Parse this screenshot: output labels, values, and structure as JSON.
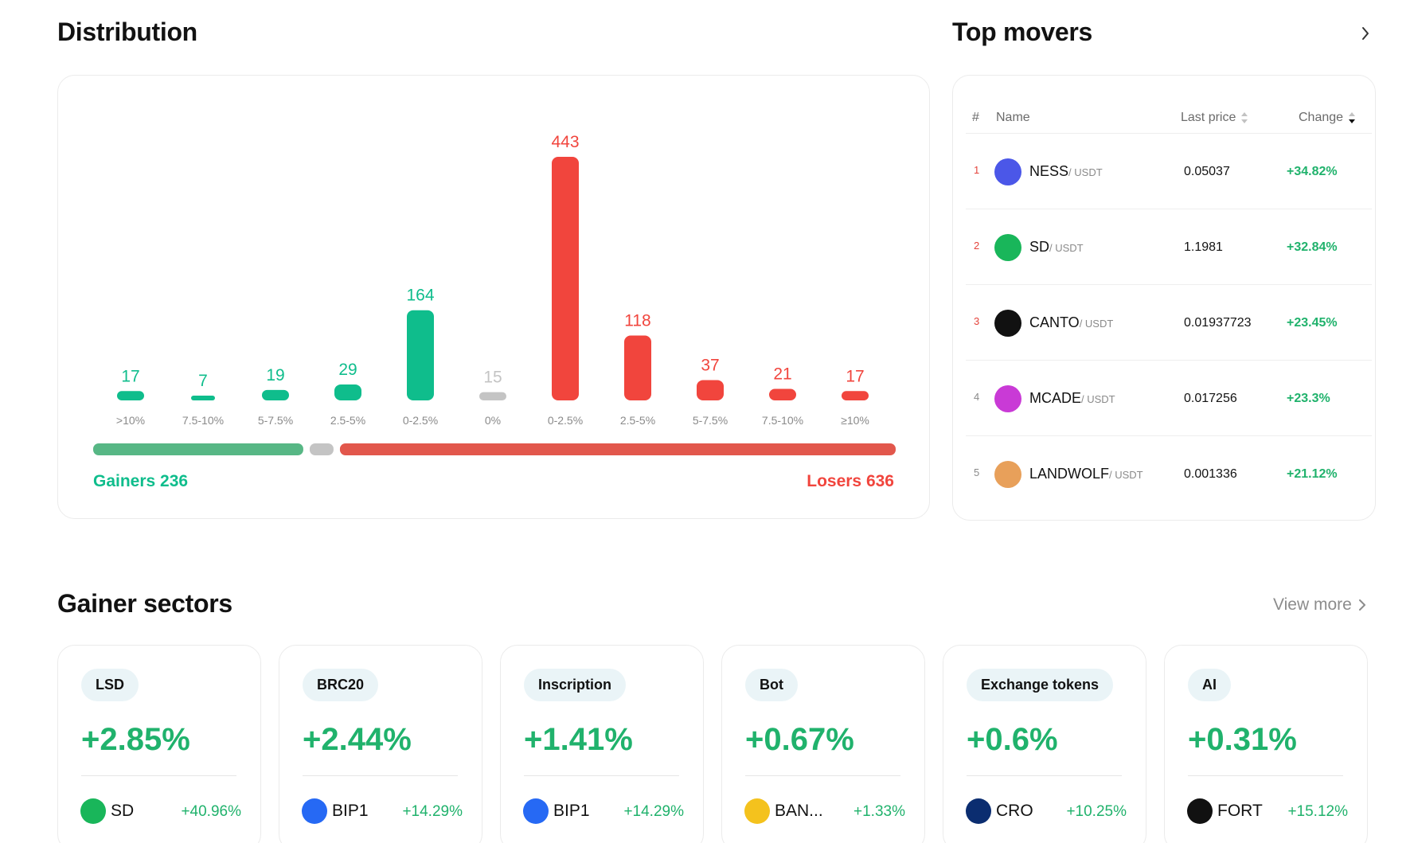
{
  "distribution": {
    "title": "Distribution",
    "gainers_label": "Gainers 236",
    "losers_label": "Losers 636",
    "gainers_count": 236,
    "neutral_count": 15,
    "losers_count": 636,
    "colors": {
      "gain": "#0fbd8c",
      "loss": "#f1453d",
      "neutral": "#c4c4c4",
      "gain_bar": "#57b785",
      "loss_bar": "#e2574c"
    }
  },
  "chart_data": {
    "type": "bar",
    "title": "Distribution",
    "categories": [
      ">10%",
      "7.5-10%",
      "5-7.5%",
      "2.5-5%",
      "0-2.5%",
      "0%",
      "0-2.5%",
      "2.5-5%",
      "5-7.5%",
      "7.5-10%",
      "≥10%"
    ],
    "values": [
      17,
      7,
      19,
      29,
      164,
      15,
      443,
      118,
      37,
      21,
      17
    ],
    "groups": [
      "gain",
      "gain",
      "gain",
      "gain",
      "gain",
      "neutral",
      "loss",
      "loss",
      "loss",
      "loss",
      "loss"
    ],
    "xlabel": "",
    "ylabel": "",
    "ylim": [
      0,
      443
    ],
    "grid": false
  },
  "top_movers": {
    "title": "Top movers",
    "columns": {
      "rank": "#",
      "name": "Name",
      "last_price": "Last price",
      "change": "Change"
    },
    "rows": [
      {
        "rank": "1",
        "base": "NESS",
        "quote": "/ USDT",
        "price": "0.05037",
        "change": "+34.82%",
        "logo_color": "#4b57e8"
      },
      {
        "rank": "2",
        "base": "SD",
        "quote": "/ USDT",
        "price": "1.1981",
        "change": "+32.84%",
        "logo_color": "#19b65a"
      },
      {
        "rank": "3",
        "base": "CANTO",
        "quote": "/ USDT",
        "price": "0.01937723",
        "change": "+23.45%",
        "logo_color": "#111111"
      },
      {
        "rank": "4",
        "base": "MCADE",
        "quote": "/ USDT",
        "price": "0.017256",
        "change": "+23.3%",
        "logo_color": "#c93ad6"
      },
      {
        "rank": "5",
        "base": "LANDWOLF",
        "quote": "/ USDT",
        "price": "0.001336",
        "change": "+21.12%",
        "logo_color": "#e8a05a"
      }
    ],
    "rank_colors": [
      "#e4433b",
      "#e4433b",
      "#e4433b",
      "#8a8a8a",
      "#8a8a8a"
    ]
  },
  "gainer_sectors": {
    "title": "Gainer sectors",
    "view_more": "View more",
    "cards": [
      {
        "tag": "LSD",
        "change": "+2.85%",
        "coin": "SD",
        "coin_change": "+40.96%",
        "logo_color": "#19b65a",
        "logo_icon": "sd-logo-icon"
      },
      {
        "tag": "BRC20",
        "change": "+2.44%",
        "coin": "BIP1",
        "coin_change": "+14.29%",
        "logo_color": "#2669f4",
        "logo_icon": "bitcoin-logo-icon"
      },
      {
        "tag": "Inscription",
        "change": "+1.41%",
        "coin": "BIP1",
        "coin_change": "+14.29%",
        "logo_color": "#2669f4",
        "logo_icon": "bitcoin-logo-icon"
      },
      {
        "tag": "Bot",
        "change": "+0.67%",
        "coin": "BAN...",
        "coin_change": "+1.33%",
        "logo_color": "#f4c21d",
        "logo_icon": "banana-logo-icon"
      },
      {
        "tag": "Exchange tokens",
        "change": "+0.6%",
        "coin": "CRO",
        "coin_change": "+10.25%",
        "logo_color": "#0b2d70",
        "logo_icon": "cro-logo-icon"
      },
      {
        "tag": "AI",
        "change": "+0.31%",
        "coin": "FORT",
        "coin_change": "+15.12%",
        "logo_color": "#111111",
        "logo_icon": "fort-logo-icon"
      }
    ]
  }
}
